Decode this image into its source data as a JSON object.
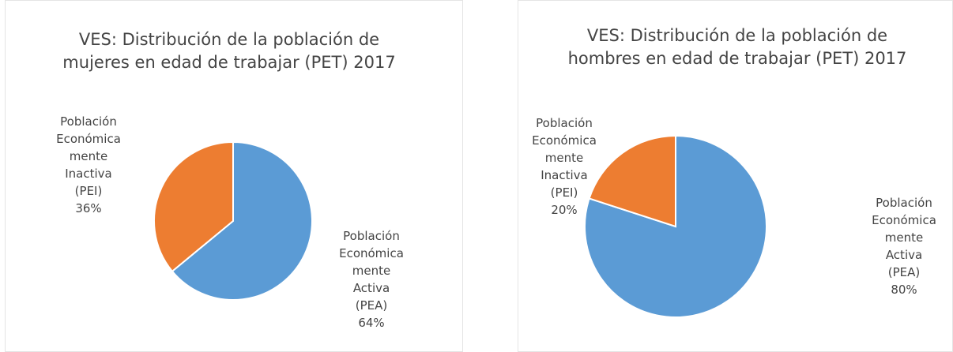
{
  "chart_data": [
    {
      "type": "pie",
      "title": "VES: Distribución de la población de mujeres en edad de trabajar (PET) 2017",
      "categories": [
        "Población Económicamente Activa (PEA)",
        "Población Económicamente Inactiva (PEI)"
      ],
      "values": [
        64,
        36
      ],
      "value_labels": [
        "64%",
        "36%"
      ],
      "colors": [
        "#5b9bd5",
        "#ed7d31"
      ]
    },
    {
      "type": "pie",
      "title": "VES: Distribución de la población de hombres en edad de trabajar (PET) 2017",
      "categories": [
        "Población Económicamente Activa (PEA)",
        "Población Económicamente Inactiva (PEI)"
      ],
      "values": [
        80,
        20
      ],
      "value_labels": [
        "80%",
        "20%"
      ],
      "colors": [
        "#5b9bd5",
        "#ed7d31"
      ]
    }
  ]
}
